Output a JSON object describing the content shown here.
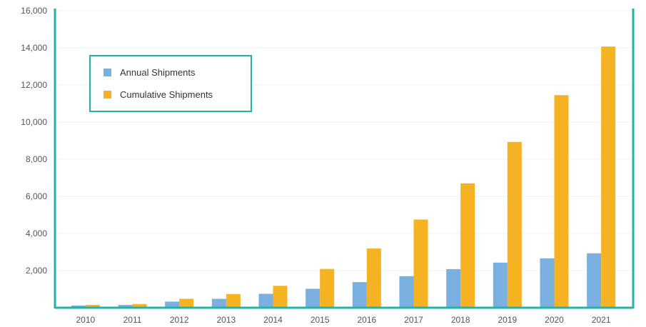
{
  "chart_data": {
    "type": "bar",
    "title": "",
    "xlabel": "",
    "ylabel": "",
    "categories": [
      "2010",
      "2011",
      "2012",
      "2013",
      "2014",
      "2015",
      "2016",
      "2017",
      "2018",
      "2019",
      "2020",
      "2021"
    ],
    "series": [
      {
        "name": "Annual Shipments",
        "color": "#7ab0e0",
        "values": [
          120,
          150,
          330,
          480,
          750,
          1020,
          1380,
          1700,
          2080,
          2430,
          2660,
          2930
        ]
      },
      {
        "name": "Cumulative Shipments",
        "color": "#f5b223",
        "values": [
          150,
          200,
          480,
          740,
          1180,
          2090,
          3190,
          4750,
          6700,
          8930,
          11450,
          14070
        ]
      }
    ],
    "ylim": [
      0,
      16000
    ],
    "yticks": [
      "16,000",
      "14,000",
      "12,000",
      "10,000",
      "8,000",
      "6,000",
      "4,000",
      "2,000"
    ],
    "ytick_values": [
      16000,
      14000,
      12000,
      10000,
      8000,
      6000,
      4000,
      2000
    ],
    "grid": true,
    "legend": {
      "placement": "top-left",
      "border_color": "#22b3a8"
    },
    "axis_color": "#22b3a8"
  }
}
